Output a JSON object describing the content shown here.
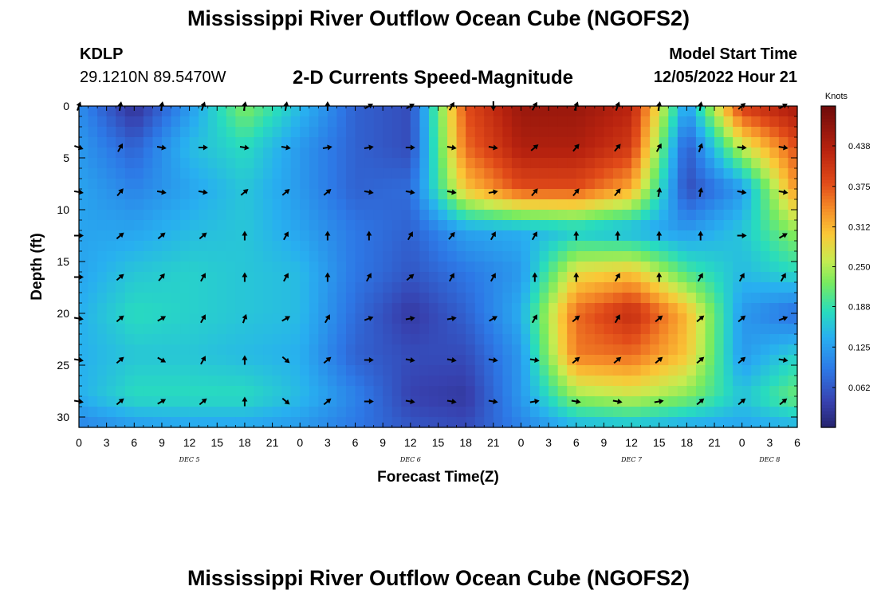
{
  "header": {
    "title": "Mississippi River Outflow Ocean Cube (NGOFS2)",
    "station_id": "KDLP",
    "station_coords": "29.1210N  89.5470W",
    "plot_title": "2-D Currents Speed-Magnitude",
    "model_start_label": "Model Start Time",
    "model_start_value": "12/05/2022 Hour 21"
  },
  "footer": {
    "title": "Mississippi River Outflow Ocean Cube (NGOFS2)"
  },
  "chart_data": {
    "type": "heatmap",
    "title": "2-D Currents Speed-Magnitude",
    "xlabel": "Forecast Time(Z)",
    "ylabel": "Depth (ft)",
    "x_tick_labels": [
      "0",
      "3",
      "6",
      "9",
      "12",
      "15",
      "18",
      "21",
      "0",
      "3",
      "6",
      "9",
      "12",
      "15",
      "18",
      "21",
      "0",
      "3",
      "6",
      "9",
      "12",
      "15",
      "18",
      "21",
      "0",
      "3",
      "6"
    ],
    "x_hours": [
      0,
      3,
      6,
      9,
      12,
      15,
      18,
      21,
      24,
      27,
      30,
      33,
      36,
      39,
      42,
      45,
      48,
      51,
      54,
      57,
      60,
      63,
      66,
      69,
      72,
      75,
      78
    ],
    "day_labels": [
      {
        "label": "DEC 5",
        "hour": 12
      },
      {
        "label": "DEC 6",
        "hour": 36
      },
      {
        "label": "DEC 7",
        "hour": 60
      },
      {
        "label": "DEC 8",
        "hour": 75
      }
    ],
    "y_ticks": [
      0,
      5,
      10,
      15,
      20,
      25,
      30
    ],
    "ylim": [
      31,
      0
    ],
    "xlim": [
      0,
      78
    ],
    "colorbar": {
      "title": "Knots",
      "ticks": [
        "0.438",
        "0.375",
        "0.312",
        "0.250",
        "0.188",
        "0.125",
        "0.062"
      ],
      "range": [
        0.0,
        0.5
      ]
    },
    "arrow_hours": [
      0,
      4.5,
      9,
      13.5,
      18,
      22.5,
      27,
      31.5,
      36,
      40.5,
      45,
      49.5,
      54,
      58.5,
      63,
      67.5,
      72,
      76.5
    ],
    "arrow_depths": [
      0,
      4,
      8.3,
      12.5,
      16.5,
      20.5,
      24.5,
      28.5
    ],
    "arrow_directions_deg": [
      [
        160,
        170,
        170,
        160,
        170,
        170,
        180,
        120,
        120,
        150,
        0,
        150,
        160,
        160,
        170,
        170,
        130,
        120
      ],
      [
        70,
        150,
        80,
        90,
        80,
        80,
        100,
        100,
        90,
        80,
        80,
        130,
        140,
        140,
        150,
        160,
        85,
        80
      ],
      [
        80,
        140,
        80,
        80,
        130,
        130,
        130,
        80,
        80,
        80,
        100,
        140,
        140,
        140,
        170,
        170,
        80,
        80
      ],
      [
        90,
        130,
        130,
        130,
        180,
        150,
        180,
        180,
        150,
        140,
        150,
        150,
        180,
        180,
        180,
        180,
        90,
        120
      ],
      [
        90,
        130,
        140,
        150,
        180,
        150,
        180,
        150,
        130,
        150,
        150,
        180,
        180,
        150,
        180,
        150,
        150,
        150
      ],
      [
        80,
        130,
        120,
        150,
        160,
        120,
        150,
        110,
        100,
        100,
        120,
        150,
        130,
        150,
        130,
        130,
        130,
        110
      ],
      [
        80,
        130,
        60,
        150,
        180,
        50,
        130,
        90,
        80,
        80,
        80,
        80,
        130,
        130,
        130,
        130,
        130,
        80
      ],
      [
        80,
        130,
        120,
        130,
        180,
        50,
        130,
        90,
        80,
        80,
        80,
        100,
        80,
        80,
        100,
        130,
        130,
        130
      ]
    ],
    "speed_grid_hours": [
      0,
      6,
      12,
      18,
      24,
      30,
      36,
      42,
      48,
      54,
      60,
      66,
      72,
      78
    ],
    "speed_grid_depths": [
      0,
      4,
      8,
      12,
      16,
      20,
      24,
      28,
      31
    ],
    "speed_knots": [
      [
        0.11,
        0.02,
        0.12,
        0.23,
        0.15,
        0.07,
        0.05,
        0.38,
        0.46,
        0.46,
        0.43,
        0.12,
        0.4,
        0.45
      ],
      [
        0.12,
        0.07,
        0.15,
        0.18,
        0.12,
        0.07,
        0.05,
        0.36,
        0.44,
        0.44,
        0.4,
        0.06,
        0.26,
        0.38
      ],
      [
        0.13,
        0.1,
        0.13,
        0.16,
        0.12,
        0.07,
        0.08,
        0.3,
        0.38,
        0.38,
        0.32,
        0.05,
        0.12,
        0.34
      ],
      [
        0.13,
        0.13,
        0.15,
        0.16,
        0.13,
        0.09,
        0.07,
        0.13,
        0.14,
        0.16,
        0.14,
        0.12,
        0.16,
        0.24
      ],
      [
        0.13,
        0.16,
        0.17,
        0.16,
        0.15,
        0.09,
        0.06,
        0.09,
        0.12,
        0.28,
        0.3,
        0.2,
        0.15,
        0.18
      ],
      [
        0.14,
        0.18,
        0.17,
        0.16,
        0.15,
        0.08,
        0.03,
        0.07,
        0.14,
        0.36,
        0.42,
        0.31,
        0.12,
        0.08
      ],
      [
        0.14,
        0.16,
        0.16,
        0.15,
        0.14,
        0.07,
        0.05,
        0.05,
        0.12,
        0.35,
        0.36,
        0.3,
        0.12,
        0.17
      ],
      [
        0.14,
        0.18,
        0.18,
        0.18,
        0.15,
        0.1,
        0.04,
        0.03,
        0.12,
        0.24,
        0.26,
        0.23,
        0.16,
        0.22
      ],
      [
        0.1,
        0.12,
        0.13,
        0.13,
        0.12,
        0.09,
        0.06,
        0.05,
        0.1,
        0.14,
        0.15,
        0.13,
        0.13,
        0.14
      ]
    ]
  }
}
